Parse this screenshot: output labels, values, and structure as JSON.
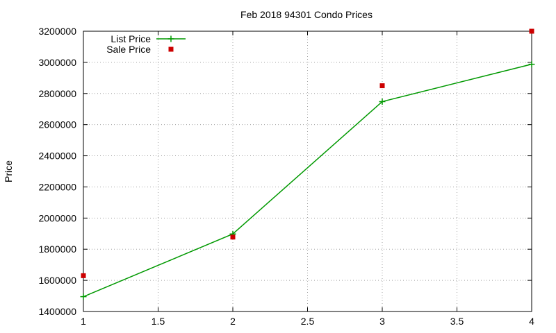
{
  "chart_data": {
    "type": "line",
    "title": "Feb 2018 94301 Condo Prices",
    "xlabel": "",
    "ylabel": "Price",
    "xlim": [
      1,
      4
    ],
    "ylim": [
      1400000,
      3200000
    ],
    "xticks": [
      "1",
      "1.5",
      "2",
      "2.5",
      "3",
      "3.5",
      "4"
    ],
    "yticks": [
      "1400000",
      "1600000",
      "1800000",
      "2000000",
      "2200000",
      "2400000",
      "2600000",
      "2800000",
      "3000000",
      "3200000"
    ],
    "grid": true,
    "legend_position": "top-left",
    "series": [
      {
        "name": "List Price",
        "style": "line+cross",
        "color": "#009900",
        "x": [
          1,
          2,
          3,
          4
        ],
        "y": [
          1495000,
          1898000,
          2748000,
          2988000
        ]
      },
      {
        "name": "Sale Price",
        "style": "square",
        "color": "#cc0000",
        "x": [
          1,
          2,
          3,
          4
        ],
        "y": [
          1630000,
          1878000,
          2850000,
          3200000
        ]
      }
    ]
  }
}
